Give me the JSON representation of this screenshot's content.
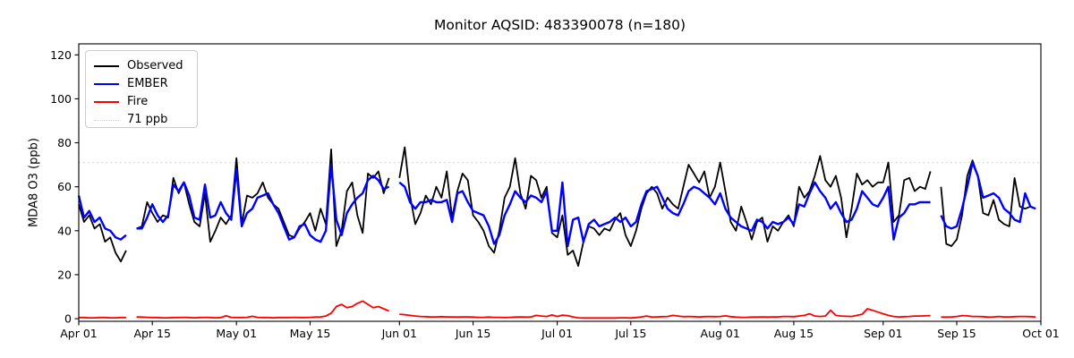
{
  "chart_data": {
    "type": "line",
    "title": "Monitor AQSID: 483390078 (n=180)",
    "xlabel": "",
    "ylabel": "MDA8 O3 (ppb)",
    "n_points_label": "n=180",
    "grid": false,
    "legend_position": "upper left",
    "ylim": [
      0,
      125
    ],
    "yticks": [
      0,
      20,
      40,
      60,
      80,
      100,
      120
    ],
    "x_axis": {
      "start": "Apr 01",
      "end": "Sep 30",
      "frequency": "daily",
      "n_days": 183,
      "tick_labels": [
        "Apr 01",
        "Apr 15",
        "May 01",
        "May 15",
        "Jun 01",
        "Jun 15",
        "Jul 01",
        "Jul 15",
        "Aug 01",
        "Aug 15",
        "Sep 01",
        "Sep 15",
        "Oct 01"
      ],
      "tick_day_index": [
        0,
        14,
        30,
        44,
        61,
        75,
        91,
        105,
        122,
        136,
        153,
        167,
        183
      ]
    },
    "threshold": {
      "label": "71 ppb",
      "value": 71,
      "color": "#d3d3d3",
      "style": "dotted"
    },
    "missing_days": [
      "Apr 11",
      "May 31",
      "Sep 11"
    ],
    "series": [
      {
        "name": "Observed",
        "color": "#000000",
        "values": [
          52,
          44,
          47,
          41,
          43,
          35,
          37,
          30,
          26,
          31,
          null,
          41,
          42,
          53,
          48,
          44,
          47,
          46,
          64,
          57,
          62,
          52,
          44,
          42,
          57,
          35,
          40,
          46,
          43,
          47,
          73,
          43,
          56,
          55,
          57,
          62,
          55,
          52,
          50,
          44,
          38,
          37,
          41,
          44,
          48,
          40,
          50,
          43,
          77,
          33,
          40,
          58,
          62,
          47,
          39,
          66,
          64,
          67,
          57,
          64,
          null,
          64,
          78,
          56,
          43,
          48,
          56,
          52,
          60,
          55,
          67,
          46,
          58,
          66,
          63,
          47,
          44,
          40,
          33,
          30,
          40,
          55,
          60,
          73,
          57,
          50,
          65,
          63,
          55,
          60,
          39,
          37,
          47,
          29,
          31,
          24,
          35,
          42,
          41,
          38,
          41,
          40,
          45,
          48,
          38,
          33,
          40,
          50,
          57,
          60,
          57,
          50,
          55,
          52,
          50,
          60,
          70,
          66,
          62,
          67,
          55,
          60,
          71,
          58,
          44,
          40,
          51,
          44,
          36,
          44,
          46,
          35,
          42,
          40,
          44,
          47,
          42,
          60,
          55,
          58,
          65,
          74,
          63,
          60,
          65,
          55,
          37,
          50,
          66,
          61,
          63,
          60,
          62,
          62,
          71,
          44,
          47,
          63,
          64,
          58,
          60,
          59,
          67,
          null,
          60,
          34,
          33,
          36,
          47,
          65,
          72,
          65,
          48,
          47,
          54,
          45,
          43,
          42,
          64,
          51,
          50,
          51,
          50
        ]
      },
      {
        "name": "EMBER",
        "color": "#0000ff",
        "values": [
          56,
          46,
          49,
          44,
          46,
          41,
          40,
          37,
          36,
          38,
          null,
          41,
          41,
          46,
          52,
          47,
          44,
          47,
          61,
          58,
          62,
          56,
          46,
          45,
          61,
          46,
          47,
          53,
          48,
          45,
          68,
          42,
          48,
          50,
          55,
          56,
          57,
          52,
          48,
          42,
          36,
          37,
          42,
          43,
          38,
          36,
          35,
          40,
          70,
          45,
          38,
          48,
          52,
          55,
          57,
          63,
          65,
          63,
          59,
          60,
          null,
          62,
          60,
          53,
          50,
          53,
          53,
          54,
          53,
          53,
          54,
          44,
          57,
          58,
          53,
          49,
          48,
          47,
          42,
          34,
          38,
          47,
          52,
          58,
          55,
          53,
          56,
          55,
          53,
          58,
          40,
          40,
          62,
          33,
          45,
          46,
          35,
          43,
          45,
          42,
          43,
          44,
          46,
          44,
          46,
          42,
          44,
          52,
          58,
          59,
          60,
          55,
          50,
          48,
          47,
          52,
          58,
          60,
          59,
          57,
          55,
          52,
          57,
          50,
          46,
          44,
          42,
          41,
          40,
          45,
          44,
          41,
          44,
          43,
          44,
          46,
          43,
          52,
          51,
          57,
          62,
          58,
          55,
          50,
          53,
          48,
          44,
          45,
          50,
          58,
          55,
          52,
          51,
          55,
          60,
          36,
          46,
          48,
          52,
          52,
          53,
          53,
          53,
          null,
          47,
          42,
          41,
          42,
          50,
          60,
          71,
          65,
          55,
          56,
          57,
          55,
          50,
          48,
          45,
          44,
          57,
          51,
          50
        ]
      },
      {
        "name": "Fire",
        "color": "#ff0000",
        "values": [
          0.5,
          0.5,
          0.4,
          0.4,
          0.5,
          0.5,
          0.4,
          0.4,
          0.5,
          0.5,
          null,
          0.8,
          0.7,
          0.6,
          0.5,
          0.5,
          0.4,
          0.4,
          0.5,
          0.5,
          0.6,
          0.5,
          0.4,
          0.5,
          0.6,
          0.5,
          0.4,
          0.5,
          1.3,
          0.6,
          0.5,
          0.5,
          0.6,
          1.1,
          0.6,
          0.5,
          0.5,
          0.4,
          0.5,
          0.5,
          0.5,
          0.6,
          0.5,
          0.5,
          0.6,
          0.7,
          0.8,
          1.2,
          2.5,
          5.5,
          6.5,
          5.0,
          5.5,
          7.0,
          8.0,
          6.5,
          5.0,
          5.5,
          4.5,
          3.5,
          null,
          2.0,
          1.8,
          1.5,
          1.2,
          1.0,
          0.9,
          0.8,
          0.8,
          0.9,
          0.8,
          0.8,
          0.7,
          0.8,
          0.8,
          0.7,
          0.6,
          0.6,
          0.7,
          0.6,
          0.6,
          0.5,
          0.6,
          0.7,
          0.8,
          0.7,
          0.8,
          1.5,
          1.2,
          1.0,
          1.7,
          1.0,
          1.6,
          1.4,
          0.8,
          0.4,
          0.3,
          0.3,
          0.3,
          0.3,
          0.3,
          0.3,
          0.3,
          0.4,
          0.4,
          0.3,
          0.5,
          0.8,
          1.2,
          0.7,
          0.8,
          0.9,
          1.0,
          1.5,
          1.2,
          0.9,
          1.0,
          0.9,
          0.8,
          0.9,
          1.0,
          0.9,
          1.0,
          1.3,
          0.9,
          0.7,
          0.6,
          0.6,
          0.7,
          0.7,
          0.8,
          0.7,
          0.8,
          0.8,
          1.0,
          1.0,
          0.9,
          1.2,
          1.5,
          2.2,
          1.2,
          1.0,
          1.2,
          3.8,
          1.5,
          1.2,
          1.1,
          1.0,
          1.5,
          2.0,
          4.5,
          3.8,
          3.0,
          2.2,
          1.5,
          1.0,
          0.8,
          0.9,
          1.0,
          1.2,
          1.2,
          1.3,
          1.4,
          null,
          0.7,
          0.7,
          0.8,
          1.0,
          1.4,
          1.3,
          1.0,
          1.0,
          0.9,
          0.7,
          0.8,
          1.0,
          0.8,
          0.8,
          0.9,
          1.0,
          1.0,
          0.9,
          0.8
        ]
      }
    ]
  }
}
